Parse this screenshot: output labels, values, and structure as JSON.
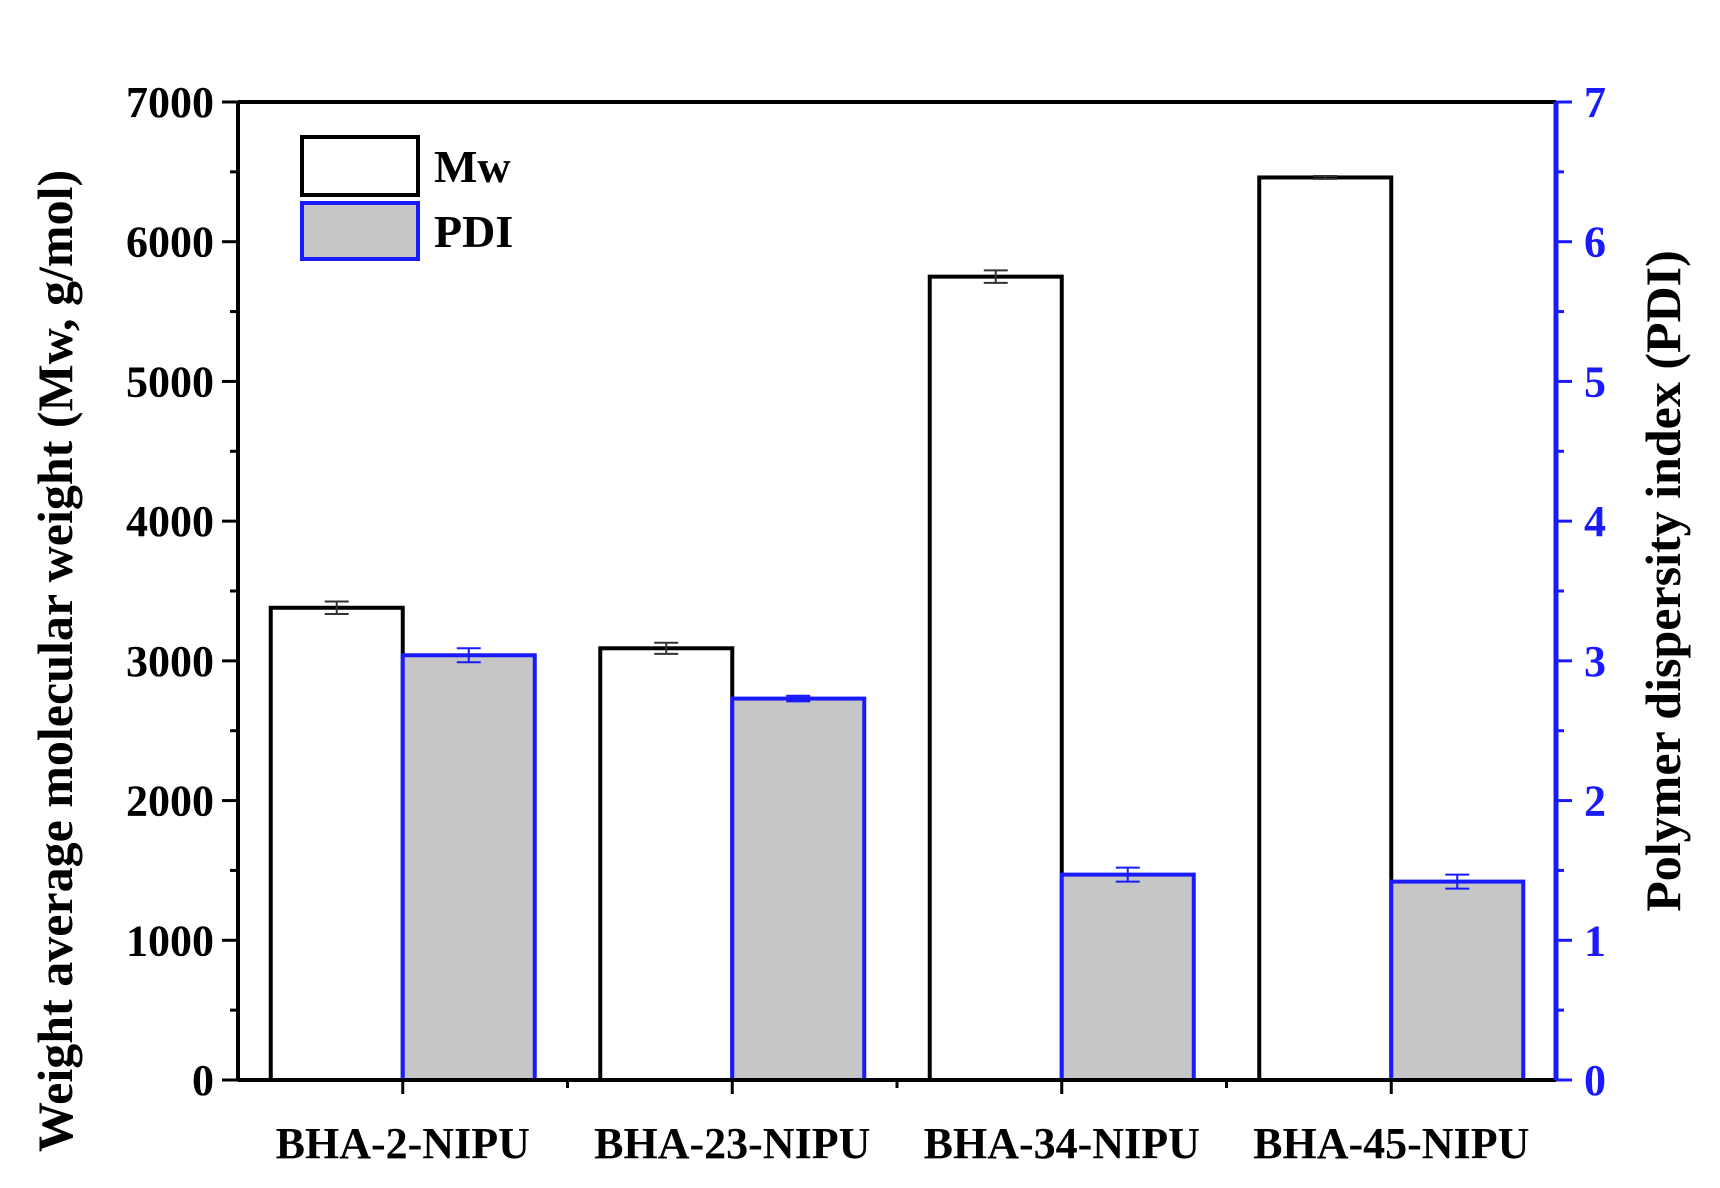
{
  "colors": {
    "left_axis": "#000000",
    "right_axis": "#1a1aff",
    "mw_fill": "#ffffff",
    "mw_stroke": "#000000",
    "pdi_fill": "#c6c6c6",
    "pdi_stroke": "#1a1aff"
  },
  "chart_data": {
    "type": "bar",
    "title": "",
    "categories": [
      "BHA-2-NIPU",
      "BHA-23-NIPU",
      "BHA-34-NIPU",
      "BHA-45-NIPU"
    ],
    "series": [
      {
        "name": "Mw",
        "axis": "left",
        "values": [
          3380,
          3090,
          5750,
          6460
        ],
        "errors": [
          45,
          40,
          45,
          10
        ]
      },
      {
        "name": "PDI",
        "axis": "right",
        "values": [
          3.04,
          2.73,
          1.47,
          1.42
        ],
        "errors": [
          0.05,
          0.02,
          0.05,
          0.05
        ]
      }
    ],
    "ylabel_left": "Weight average molecular weight (Mw, g/mol)",
    "ylabel_right": "Polymer dispersity index (PDI)",
    "ylim_left": [
      0,
      7000
    ],
    "ylim_right": [
      0,
      7
    ],
    "yticks_left": [
      "0",
      "1000",
      "2000",
      "3000",
      "4000",
      "5000",
      "6000",
      "7000"
    ],
    "yticks_right": [
      "0",
      "1",
      "2",
      "3",
      "4",
      "5",
      "6",
      "7"
    ],
    "grid": false,
    "legend_position": "top-left"
  }
}
